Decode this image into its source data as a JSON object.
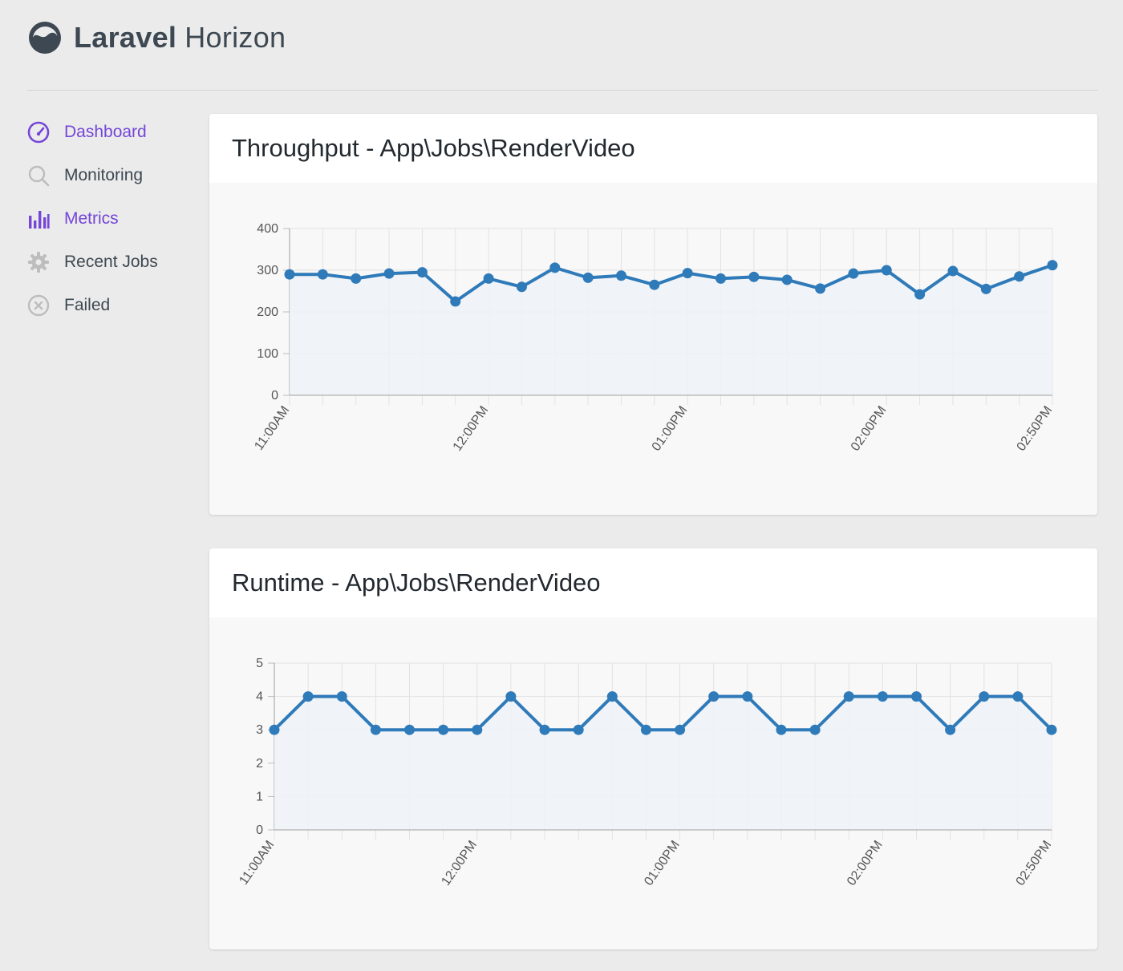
{
  "app": {
    "name_bold": "Laravel",
    "name_light": "Horizon"
  },
  "colors": {
    "accent": "#7546d8",
    "line": "#2f7ab9",
    "fill": "#eef3f8"
  },
  "sidebar": {
    "items": [
      {
        "label": "Dashboard",
        "icon": "gauge-icon",
        "active": true
      },
      {
        "label": "Monitoring",
        "icon": "search-icon",
        "active": false
      },
      {
        "label": "Metrics",
        "icon": "bar-chart-icon",
        "active": true
      },
      {
        "label": "Recent Jobs",
        "icon": "gear-icon",
        "active": false
      },
      {
        "label": "Failed",
        "icon": "x-circle-icon",
        "active": false
      }
    ]
  },
  "throughput": {
    "title": "Throughput - App\\Jobs\\RenderVideo"
  },
  "runtime": {
    "title": "Runtime - App\\Jobs\\RenderVideo"
  },
  "chart_data": [
    {
      "type": "line",
      "title": "Throughput - App\\Jobs\\RenderVideo",
      "xlabel": "",
      "ylabel": "",
      "x": [
        "11:00AM",
        "11:10AM",
        "11:20AM",
        "11:30AM",
        "11:40AM",
        "11:50AM",
        "12:00PM",
        "12:10PM",
        "12:20PM",
        "12:30PM",
        "12:40PM",
        "12:50PM",
        "01:00PM",
        "01:10PM",
        "01:20PM",
        "01:30PM",
        "01:40PM",
        "01:50PM",
        "02:00PM",
        "02:10PM",
        "02:20PM",
        "02:30PM",
        "02:40PM",
        "02:50PM"
      ],
      "x_tick_labels": [
        "11:00AM",
        "12:00PM",
        "01:00PM",
        "02:00PM",
        "02:50PM"
      ],
      "x_tick_label_index": [
        0,
        6,
        12,
        18,
        23
      ],
      "y_ticks": [
        "0",
        "100",
        "200",
        "300",
        "400"
      ],
      "ylim": [
        0,
        400
      ],
      "grid": true,
      "series": [
        {
          "values": [
            290,
            290,
            280,
            292,
            295,
            225,
            280,
            260,
            306,
            282,
            287,
            265,
            293,
            280,
            284,
            277,
            256,
            292,
            300,
            242,
            298,
            255,
            285,
            312
          ]
        }
      ]
    },
    {
      "type": "line",
      "title": "Runtime - App\\Jobs\\RenderVideo",
      "xlabel": "",
      "ylabel": "",
      "x": [
        "11:00AM",
        "11:10AM",
        "11:20AM",
        "11:30AM",
        "11:40AM",
        "11:50AM",
        "12:00PM",
        "12:10PM",
        "12:20PM",
        "12:30PM",
        "12:40PM",
        "12:50PM",
        "01:00PM",
        "01:10PM",
        "01:20PM",
        "01:30PM",
        "01:40PM",
        "01:50PM",
        "02:00PM",
        "02:10PM",
        "02:20PM",
        "02:30PM",
        "02:40PM",
        "02:50PM"
      ],
      "x_tick_labels": [
        "11:00AM",
        "12:00PM",
        "01:00PM",
        "02:00PM",
        "02:50PM"
      ],
      "x_tick_label_index": [
        0,
        6,
        12,
        18,
        23
      ],
      "y_ticks": [
        "0",
        "1",
        "2",
        "3",
        "4",
        "5"
      ],
      "ylim": [
        0,
        5
      ],
      "grid": true,
      "series": [
        {
          "values": [
            3,
            4,
            4,
            3,
            3,
            3,
            3,
            4,
            3,
            3,
            4,
            3,
            3,
            4,
            4,
            3,
            3,
            4,
            4,
            4,
            3,
            4,
            4,
            3
          ]
        }
      ]
    }
  ]
}
